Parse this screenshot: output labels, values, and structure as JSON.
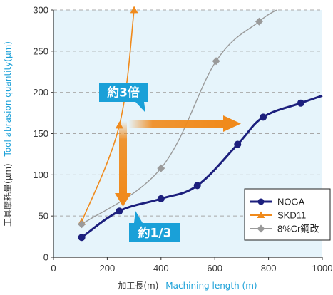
{
  "chart_data": {
    "type": "line",
    "title": "",
    "xlabel_jp": "加工長(m)",
    "xlabel_en": "Machining length (m)",
    "ylabel_jp": "工具摩耗量(μm)",
    "ylabel_en": "Tool abrasion quantity(μm)",
    "xlim": [
      0,
      1000
    ],
    "ylim": [
      0,
      300
    ],
    "xticks": [
      "0",
      "200",
      "400",
      "600",
      "800",
      "1000"
    ],
    "yticks": [
      "0",
      "50",
      "100",
      "150",
      "200",
      "250",
      "300"
    ],
    "grid": "horizontal dashed",
    "legend_position": "bottom-right",
    "series": [
      {
        "name": "NOGA",
        "color": "#1c1f7d",
        "marker": "circle",
        "smooth": true,
        "x": [
          105,
          245,
          400,
          535,
          685,
          780,
          920,
          1000
        ],
        "y": [
          24,
          56,
          71,
          87,
          137,
          170,
          187,
          196
        ],
        "markers_x": [
          105,
          245,
          400,
          535,
          685,
          780,
          920
        ],
        "markers_y": [
          24,
          56,
          71,
          87,
          137,
          170,
          187
        ]
      },
      {
        "name": "SKD11",
        "color": "#f08a1c",
        "marker": "triangle",
        "smooth": true,
        "x": [
          105,
          245,
          300
        ],
        "y": [
          43,
          160,
          300
        ],
        "markers_x": [
          105,
          245,
          300
        ],
        "markers_y": [
          43,
          160,
          300
        ]
      },
      {
        "name": "8%Cr鋼改",
        "color": "#9a9a9a",
        "marker": "diamond",
        "smooth": true,
        "x": [
          105,
          400,
          605,
          765,
          830
        ],
        "y": [
          40,
          108,
          238,
          286,
          300
        ],
        "markers_x": [
          105,
          400,
          605,
          765
        ],
        "markers_y": [
          40,
          108,
          238,
          286
        ]
      }
    ],
    "annotations": [
      {
        "text": "約3倍",
        "color": "#1aa0d8"
      },
      {
        "text": "約1/3",
        "color": "#1aa0d8"
      }
    ]
  },
  "colors": {
    "plot_background": "#e6f4fb",
    "grid": "#a8a8a8",
    "arrow": "#f08a1c",
    "callout": "#1aa0d8",
    "axis_en": "#1aa0d8"
  }
}
